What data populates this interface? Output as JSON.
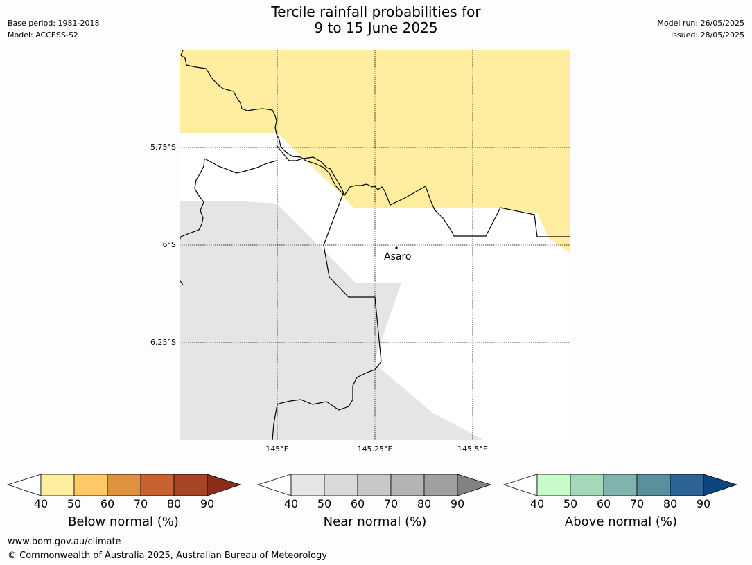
{
  "header": {
    "base_period": "Base period: 1981-2018",
    "model": "Model: ACCESS-S2",
    "title_line1": "Tercile rainfall probabilities for",
    "title_line2": "9 to 15 June 2025",
    "model_run": "Model run: 26/05/2025",
    "issued": "Issued: 28/05/2025"
  },
  "map": {
    "lat_labels": [
      "5.75°S",
      "6°S",
      "6.25°S"
    ],
    "lon_labels": [
      "145°E",
      "145.25°E",
      "145.5°E"
    ],
    "place": "Asaro",
    "colors": {
      "below_40_50": "#ffeda0",
      "near_40_50": "#e5e5e5",
      "background": "#ffffff"
    }
  },
  "legend": {
    "below": {
      "title": "Below normal (%)",
      "ticks": [
        "40",
        "50",
        "60",
        "70",
        "80",
        "90"
      ],
      "colors": [
        "#ffeda0",
        "#fec965",
        "#e0913e",
        "#c96131",
        "#a84426",
        "#8c2d1a"
      ]
    },
    "near": {
      "title": "Near normal (%)",
      "ticks": [
        "40",
        "50",
        "60",
        "70",
        "80",
        "90"
      ],
      "colors": [
        "#e5e5e5",
        "#d9d9d9",
        "#c8c8c8",
        "#b4b4b4",
        "#a0a0a0",
        "#828282"
      ]
    },
    "above": {
      "title": "Above normal (%)",
      "ticks": [
        "40",
        "50",
        "60",
        "70",
        "80",
        "90"
      ],
      "colors": [
        "#c7fbc9",
        "#a3d8b9",
        "#7fb4ae",
        "#5a8f9e",
        "#2e6395",
        "#0d4580"
      ]
    }
  },
  "footer": {
    "url": "www.bom.gov.au/climate",
    "copyright": "© Commonwealth of Australia 2025, Australian Bureau of Meteorology"
  }
}
